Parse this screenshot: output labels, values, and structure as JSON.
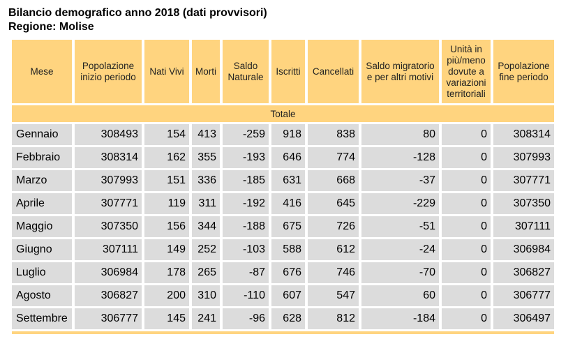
{
  "title": {
    "line1": "Bilancio demografico anno 2018 (dati provvisori)",
    "line2": "Regione: Molise"
  },
  "colors": {
    "header_bg": "#ffd47f",
    "cell_bg": "#dcdcdc"
  },
  "table": {
    "headers": [
      "Mese",
      "Popolazione inizio periodo",
      "Nati Vivi",
      "Morti",
      "Saldo Naturale",
      "Iscritti",
      "Cancellati",
      "Saldo migratorio e per altri motivi",
      "Unità in più/meno dovute a variazioni territoriali",
      "Popolazione fine periodo"
    ],
    "section_label": "Totale",
    "rows": [
      [
        "Gennaio",
        "308493",
        "154",
        "413",
        "-259",
        "918",
        "838",
        "80",
        "0",
        "308314"
      ],
      [
        "Febbraio",
        "308314",
        "162",
        "355",
        "-193",
        "646",
        "774",
        "-128",
        "0",
        "307993"
      ],
      [
        "Marzo",
        "307993",
        "151",
        "336",
        "-185",
        "631",
        "668",
        "-37",
        "0",
        "307771"
      ],
      [
        "Aprile",
        "307771",
        "119",
        "311",
        "-192",
        "416",
        "645",
        "-229",
        "0",
        "307350"
      ],
      [
        "Maggio",
        "307350",
        "156",
        "344",
        "-188",
        "675",
        "726",
        "-51",
        "0",
        "307111"
      ],
      [
        "Giugno",
        "307111",
        "149",
        "252",
        "-103",
        "588",
        "612",
        "-24",
        "0",
        "306984"
      ],
      [
        "Luglio",
        "306984",
        "178",
        "265",
        "-87",
        "676",
        "746",
        "-70",
        "0",
        "306827"
      ],
      [
        "Agosto",
        "306827",
        "200",
        "310",
        "-110",
        "607",
        "547",
        "60",
        "0",
        "306777"
      ],
      [
        "Settembre",
        "306777",
        "145",
        "241",
        "-96",
        "628",
        "812",
        "-184",
        "0",
        "306497"
      ]
    ]
  }
}
